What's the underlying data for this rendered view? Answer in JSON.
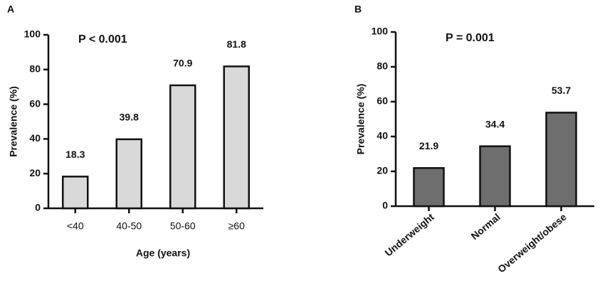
{
  "chart_data": [
    {
      "type": "bar",
      "panel_label": "A",
      "annotation": "P < 0.001",
      "ylabel": "Prevalence (%)",
      "xlabel": "Age (years)",
      "categories": [
        "<40",
        "40-50",
        "50-60",
        "≥60"
      ],
      "values": [
        18.3,
        39.8,
        70.9,
        81.8
      ],
      "color": "#d9d9d9",
      "ylim": [
        0,
        100
      ],
      "yticks": [
        0,
        20,
        40,
        60,
        80,
        100
      ]
    },
    {
      "type": "bar",
      "panel_label": "B",
      "annotation": "P = 0.001",
      "ylabel": "Prevalence (%)",
      "categories": [
        "Underweight",
        "Normal",
        "Overweight/obese"
      ],
      "values": [
        21.9,
        34.4,
        53.7
      ],
      "color": "#6e6e6e",
      "ylim": [
        0,
        100
      ],
      "yticks": [
        0,
        20,
        40,
        60,
        80,
        100
      ]
    }
  ]
}
